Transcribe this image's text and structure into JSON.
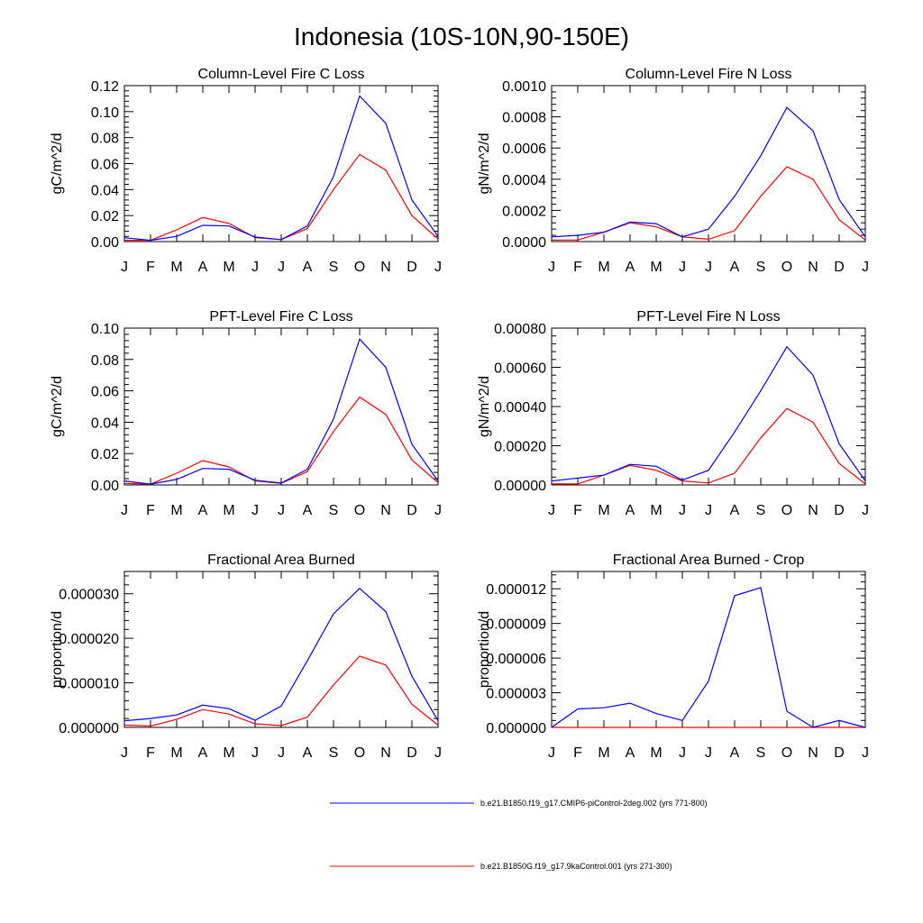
{
  "title": "Indonesia (10S-10N,90-150E)",
  "months": [
    "J",
    "F",
    "M",
    "A",
    "M",
    "J",
    "J",
    "A",
    "S",
    "O",
    "N",
    "D",
    "J"
  ],
  "series_colors": [
    "#0000ff",
    "#ff0000"
  ],
  "legend": [
    {
      "label": "b.e21.B1850.f19_g17.CMIP6-piControl-2deg.002 (yrs 771-800)",
      "color": "#0000ff"
    },
    {
      "label": "b.e21.B1850G.f19_g17.9kaControl.001 (yrs 271-300)",
      "color": "#ff0000"
    }
  ],
  "chart_data": [
    {
      "type": "line",
      "title": "Column-Level Fire C Loss",
      "ylabel": "gC/m^2/d",
      "ylim": [
        0,
        0.12
      ],
      "yticks": [
        0,
        0.02,
        0.04,
        0.06,
        0.08,
        0.1,
        0.12
      ],
      "ytick_labels": [
        "0.00",
        "0.02",
        "0.04",
        "0.06",
        "0.08",
        "0.10",
        "0.12"
      ],
      "series": [
        {
          "name": "b.e21.B1850.f19_g17.CMIP6-piControl-2deg.002 (yrs 771-800)",
          "values": [
            0.003,
            0.001,
            0.004,
            0.0125,
            0.012,
            0.0035,
            0.0015,
            0.012,
            0.05,
            0.112,
            0.091,
            0.032,
            0.004
          ]
        },
        {
          "name": "b.e21.B1850G.f19_g17.9kaControl.001 (yrs 271-300)",
          "values": [
            0.001,
            0.001,
            0.009,
            0.0185,
            0.014,
            0.003,
            0.0015,
            0.01,
            0.04,
            0.067,
            0.055,
            0.02,
            0.002
          ]
        }
      ]
    },
    {
      "type": "line",
      "title": "Column-Level Fire N Loss",
      "ylabel": "gN/m^2/d",
      "ylim": [
        0,
        0.001
      ],
      "yticks": [
        0,
        0.0002,
        0.0004,
        0.0006,
        0.0008,
        0.001
      ],
      "ytick_labels": [
        "0.0000",
        "0.0002",
        "0.0004",
        "0.0006",
        "0.0008",
        "0.0010"
      ],
      "series": [
        {
          "name": "b.e21.B1850.f19_g17.CMIP6-piControl-2deg.002 (yrs 771-800)",
          "values": [
            3e-05,
            4e-05,
            6e-05,
            0.000125,
            0.000115,
            3e-05,
            8e-05,
            0.00029,
            0.00055,
            0.00086,
            0.00071,
            0.00027,
            3e-05
          ]
        },
        {
          "name": "b.e21.B1850G.f19_g17.9kaControl.001 (yrs 271-300)",
          "values": [
            1e-05,
            1e-05,
            6e-05,
            0.00012,
            9.5e-05,
            3e-05,
            1.5e-05,
            7e-05,
            0.00029,
            0.00048,
            0.0004,
            0.00014,
            1e-05
          ]
        }
      ]
    },
    {
      "type": "line",
      "title": "PFT-Level Fire C Loss",
      "ylabel": "gC/m^2/d",
      "ylim": [
        0,
        0.1
      ],
      "yticks": [
        0,
        0.02,
        0.04,
        0.06,
        0.08,
        0.1
      ],
      "ytick_labels": [
        "0.00",
        "0.02",
        "0.04",
        "0.06",
        "0.08",
        "0.10"
      ],
      "series": [
        {
          "name": "b.e21.B1850.f19_g17.CMIP6-piControl-2deg.002 (yrs 771-800)",
          "values": [
            0.0025,
            0.0005,
            0.0035,
            0.0105,
            0.01,
            0.003,
            0.0012,
            0.01,
            0.042,
            0.093,
            0.075,
            0.026,
            0.0025
          ]
        },
        {
          "name": "b.e21.B1850G.f19_g17.9kaControl.001 (yrs 271-300)",
          "values": [
            0.001,
            0.0005,
            0.0075,
            0.0155,
            0.0115,
            0.0025,
            0.001,
            0.0085,
            0.034,
            0.056,
            0.045,
            0.016,
            0.0015
          ]
        }
      ]
    },
    {
      "type": "line",
      "title": "PFT-Level Fire N Loss",
      "ylabel": "gN/m^2/d",
      "ylim": [
        0,
        0.0008
      ],
      "yticks": [
        0,
        0.0002,
        0.0004,
        0.0006,
        0.0008
      ],
      "ytick_labels": [
        "0.00000",
        "0.00020",
        "0.00040",
        "0.00060",
        "0.00080"
      ],
      "series": [
        {
          "name": "b.e21.B1850.f19_g17.CMIP6-piControl-2deg.002 (yrs 771-800)",
          "values": [
            2e-05,
            3.5e-05,
            5e-05,
            0.000105,
            9.5e-05,
            2.5e-05,
            7.5e-05,
            0.00027,
            0.00048,
            0.000705,
            0.00056,
            0.00021,
            2e-05
          ]
        },
        {
          "name": "b.e21.B1850G.f19_g17.9kaControl.001 (yrs 271-300)",
          "values": [
            5e-06,
            5e-06,
            5e-05,
            0.0001,
            7.5e-05,
            2e-05,
            1e-05,
            6e-05,
            0.00024,
            0.00039,
            0.00032,
            0.00011,
            5e-06
          ]
        }
      ]
    },
    {
      "type": "line",
      "title": "Fractional Area Burned",
      "ylabel": "proportion/d",
      "ylim": [
        0,
        3.5e-05
      ],
      "yticks": [
        0,
        1e-05,
        2e-05,
        3e-05
      ],
      "ytick_labels": [
        "0.000000",
        "0.000010",
        "0.000020",
        "0.000030"
      ],
      "series": [
        {
          "name": "b.e21.B1850.f19_g17.CMIP6-piControl-2deg.002 (yrs 771-800)",
          "values": [
            1.5e-06,
            2e-06,
            2.8e-06,
            5e-06,
            4.2e-06,
            1.6e-06,
            4.8e-06,
            1.5e-05,
            2.55e-05,
            3.12e-05,
            2.6e-05,
            1.15e-05,
            1.5e-06
          ]
        },
        {
          "name": "b.e21.B1850G.f19_g17.9kaControl.001 (yrs 271-300)",
          "values": [
            5e-07,
            3e-07,
            1.8e-06,
            4e-06,
            3e-06,
            8e-07,
            4e-07,
            2.3e-06,
            9.5e-06,
            1.6e-05,
            1.4e-05,
            5.2e-06,
            5e-07
          ]
        }
      ]
    },
    {
      "type": "line",
      "title": "Fractional Area Burned - Crop",
      "ylabel": "proportion/d",
      "ylim": [
        0,
        1.35e-05
      ],
      "yticks": [
        0,
        3e-06,
        6e-06,
        9e-06,
        1.2e-05
      ],
      "ytick_labels": [
        "0.000000",
        "0.000003",
        "0.000006",
        "0.000009",
        "0.000012"
      ],
      "series": [
        {
          "name": "b.e21.B1850.f19_g17.CMIP6-piControl-2deg.002 (yrs 771-800)",
          "values": [
            0,
            1.6e-06,
            1.7e-06,
            2.1e-06,
            1.2e-06,
            6e-07,
            4e-06,
            1.14e-05,
            1.21e-05,
            1.4e-06,
            0,
            6e-07,
            0
          ]
        },
        {
          "name": "b.e21.B1850G.f19_g17.9kaControl.001 (yrs 271-300)",
          "values": [
            0,
            0,
            0,
            0,
            0,
            0,
            0,
            0,
            0,
            0,
            0,
            0,
            0
          ]
        }
      ]
    }
  ]
}
